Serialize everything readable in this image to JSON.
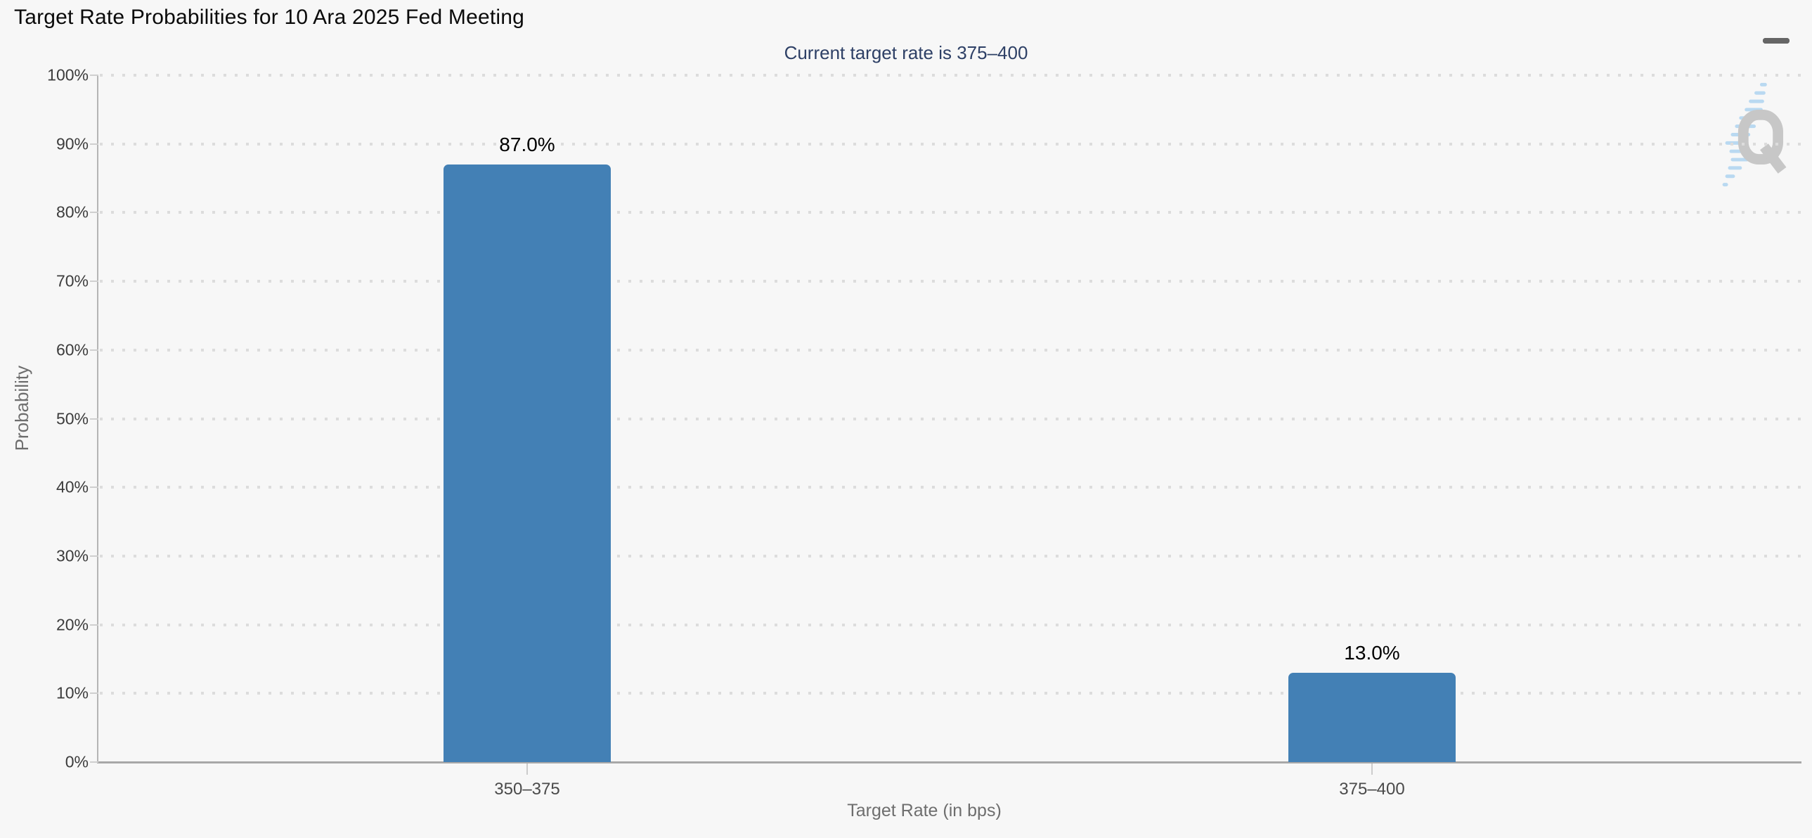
{
  "header": {
    "title": "Target Rate Probabilities for 10 Ara 2025 Fed Meeting",
    "menu_icon": "hamburger-menu"
  },
  "chart_data": {
    "type": "bar",
    "title": "Target Rate Probabilities for 10 Ara 2025 Fed Meeting",
    "subtitle": "Current target rate is 375–400",
    "categories": [
      "350–375",
      "375–400"
    ],
    "values": [
      87.0,
      13.0
    ],
    "value_labels": [
      "87.0%",
      "13.0%"
    ],
    "xlabel": "Target Rate (in bps)",
    "ylabel": "Probability",
    "ylim": [
      0,
      100
    ],
    "ytick_labels": [
      "100%",
      "90%",
      "80%",
      "70%",
      "60%",
      "50%",
      "40%",
      "30%",
      "20%",
      "10%",
      "0%"
    ],
    "grid": "dotted horizontal gridlines every 10%",
    "legend": "none",
    "bar_color": "#4380b5",
    "subtitle_color": "#2e4066",
    "background_color": "#f7f7f7",
    "watermark": "Q logo"
  }
}
